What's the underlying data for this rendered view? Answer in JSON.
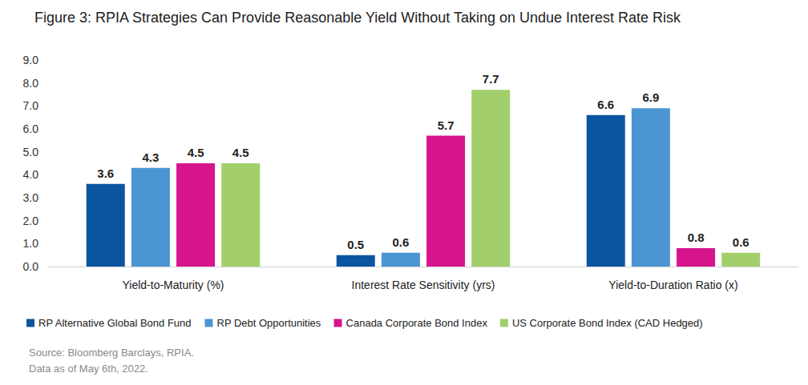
{
  "chart_data": {
    "type": "bar",
    "title": "Figure 3: RPIA Strategies Can Provide Reasonable Yield Without Taking on Undue Interest Rate Risk",
    "categories": [
      "Yield-to-Maturity (%)",
      "Interest Rate Sensitivity (yrs)",
      "Yield-to-Duration Ratio (x)"
    ],
    "series": [
      {
        "name": "RP Alternative Global Bond Fund",
        "color": "#0b54a0",
        "values": [
          3.6,
          0.5,
          6.6
        ]
      },
      {
        "name": "RP Debt Opportunities",
        "color": "#4b95d3",
        "values": [
          4.3,
          0.6,
          6.9
        ]
      },
      {
        "name": "Canada Corporate Bond Index",
        "color": "#d6158d",
        "values": [
          4.5,
          5.7,
          0.8
        ]
      },
      {
        "name": "US Corporate Bond Index (CAD Hedged)",
        "color": "#a2cf6c",
        "values": [
          4.5,
          7.7,
          0.6
        ]
      }
    ],
    "ylim": [
      0,
      9
    ],
    "yticks": [
      {
        "value": 0,
        "label": "0.0"
      },
      {
        "value": 1,
        "label": "1.0"
      },
      {
        "value": 2,
        "label": "2.0"
      },
      {
        "value": 3,
        "label": "3.0"
      },
      {
        "value": 4,
        "label": "4.0"
      },
      {
        "value": 5,
        "label": "5.0"
      },
      {
        "value": 6,
        "label": "6.0"
      },
      {
        "value": 7,
        "label": "7.0"
      },
      {
        "value": 8,
        "label": "8.0"
      },
      {
        "value": 9,
        "label": "9.0"
      }
    ],
    "grid": false,
    "legend": "bottom",
    "data_labels": true,
    "annotations": [
      "Source: Bloomberg Barclays, RPIA.",
      "Data as of May 6th, 2022."
    ]
  }
}
